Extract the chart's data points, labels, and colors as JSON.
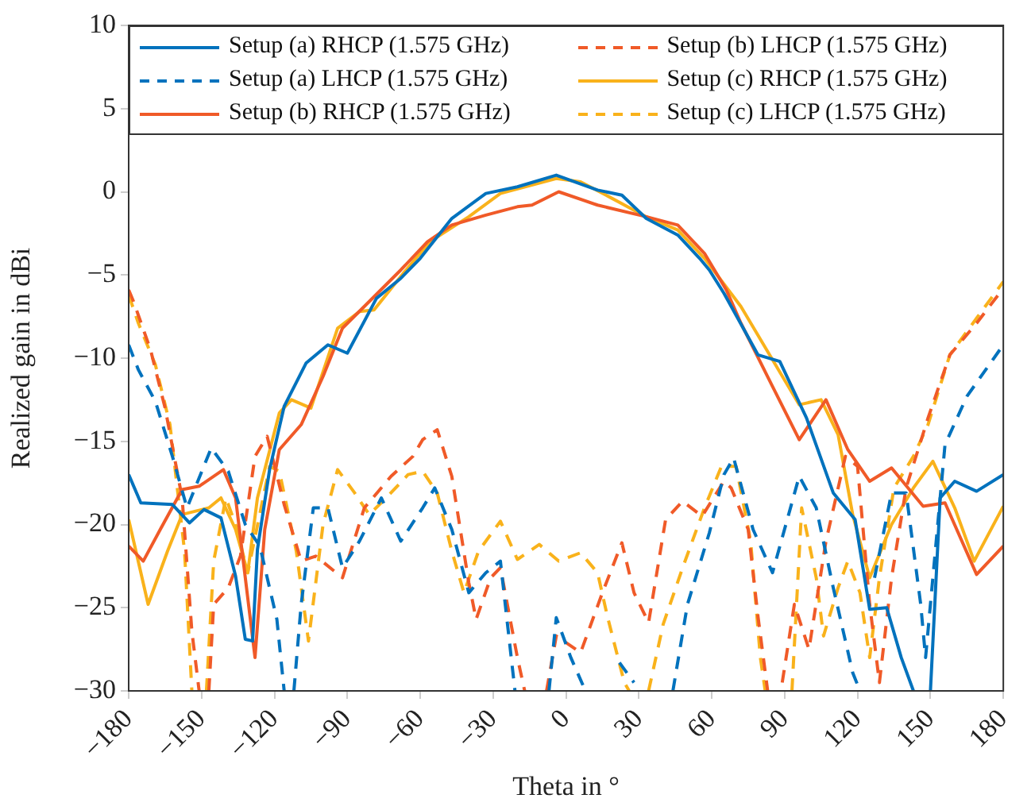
{
  "chart_data": {
    "type": "line",
    "xlabel": "Theta in °",
    "ylabel": "Realized gain in dBi",
    "xlim": [
      -180,
      180
    ],
    "ylim": [
      -30,
      10
    ],
    "xticks": [
      {
        "value": -180,
        "label": "−180"
      },
      {
        "value": -150,
        "label": "−150"
      },
      {
        "value": -120,
        "label": "−120"
      },
      {
        "value": -90,
        "label": "−90"
      },
      {
        "value": -60,
        "label": "−60"
      },
      {
        "value": -30,
        "label": "−30"
      },
      0,
      30,
      60,
      90,
      120,
      150,
      180
    ],
    "yticks": [
      {
        "value": -30,
        "label": "−30"
      },
      {
        "value": -25,
        "label": "−25"
      },
      {
        "value": -20,
        "label": "−20"
      },
      {
        "value": -15,
        "label": "−15"
      },
      {
        "value": -10,
        "label": "−10"
      },
      {
        "value": -5,
        "label": "−5"
      },
      0,
      5,
      10
    ],
    "grid": false,
    "legend": "top",
    "marker": "none",
    "series": [
      {
        "name": "Setup (a) RHCP (1.575 GHz)",
        "color": "#0072bd",
        "line_style": "solid",
        "x": [
          -180,
          -175,
          -162,
          -155,
          -149,
          -142,
          -136,
          -132,
          -129,
          -127,
          -122,
          -116,
          -107,
          -98,
          -90,
          -78,
          -68,
          -60,
          -47,
          -33,
          -20,
          -4,
          13,
          23,
          33,
          46,
          55,
          59,
          65,
          79,
          88,
          99,
          110,
          119,
          125,
          132,
          138,
          143,
          146,
          150,
          154,
          160,
          169,
          180
        ],
        "values": [
          -17,
          -18.7,
          -18.8,
          -19.9,
          -19.1,
          -19.6,
          -23.1,
          -26.9,
          -27,
          -21.5,
          -16.7,
          -12.9,
          -10.3,
          -9.2,
          -9.7,
          -6.4,
          -5.2,
          -4,
          -1.6,
          -0.1,
          0.3,
          1,
          0.1,
          -0.2,
          -1.6,
          -2.6,
          -4,
          -4.7,
          -6.1,
          -9.8,
          -10.2,
          -13.6,
          -18.1,
          -19.7,
          -25.1,
          -25,
          -28,
          -30,
          null,
          -30,
          -18.4,
          -17.4,
          -18,
          -17
        ]
      },
      {
        "name": "Setup (a) LHCP (1.575 GHz)",
        "color": "#0072bd",
        "line_style": "dashed",
        "x": [
          -180,
          -176,
          -169,
          -162,
          -156,
          -146,
          -139,
          -132,
          -126,
          -119,
          -116,
          -114,
          -112,
          -109,
          -104,
          -98,
          -92,
          -85,
          -76,
          -68,
          -59,
          -54,
          -47,
          -40,
          -33,
          -27,
          -21,
          -14,
          -7,
          -4,
          2,
          8,
          15,
          22,
          28,
          36,
          44,
          50,
          59,
          65,
          69,
          77,
          85,
          96,
          103,
          110,
          118,
          121,
          124,
          127,
          134,
          140,
          146,
          148,
          156,
          165,
          180
        ],
        "values": [
          -9.2,
          -10.7,
          -12.6,
          -15.9,
          -19,
          -15.4,
          -16.8,
          -20,
          -21.3,
          -25.7,
          -30,
          null,
          -30,
          -24.8,
          -19,
          -19,
          -22.6,
          -21,
          -18.4,
          -21,
          -19,
          -17.8,
          -20.3,
          -24.1,
          -22.9,
          -22.2,
          -30,
          null,
          -30,
          -25.6,
          -28,
          -30,
          null,
          -28.3,
          -29.5,
          null,
          -30,
          -24.8,
          -20.5,
          -17,
          -16,
          -20.3,
          -22.9,
          -17.1,
          -19,
          -23.8,
          -28.9,
          -30,
          null,
          -23.2,
          -18.1,
          -18.1,
          -24.8,
          -28,
          -15.2,
          -12.3,
          -9.2
        ]
      },
      {
        "name": "Setup (b) RHCP (1.575 GHz)",
        "color": "#f05a28",
        "line_style": "solid",
        "x": [
          -180,
          -174,
          -167,
          -158,
          -151,
          -141,
          -136,
          -132,
          -128,
          -124,
          -118,
          -109,
          -100,
          -92,
          -81,
          -68,
          -57,
          -47,
          -33,
          -20,
          -14,
          -3,
          13,
          33,
          46,
          57,
          66,
          72,
          85,
          96,
          107,
          116,
          125,
          134,
          147,
          156,
          169,
          180
        ],
        "values": [
          -21.3,
          -22.2,
          -20.3,
          -17.9,
          -17.7,
          -16.7,
          -18.4,
          -23.2,
          -28,
          -20.3,
          -15.5,
          -14,
          -11.1,
          -8.2,
          -6.6,
          -4.7,
          -3,
          -2,
          -1.4,
          -0.9,
          -0.8,
          0,
          -0.8,
          -1.5,
          -2,
          -3.7,
          -5.9,
          -7.9,
          -11.7,
          -14.9,
          -12.5,
          -15.5,
          -17.4,
          -16.6,
          -18.9,
          -18.7,
          -23,
          -21.3
        ]
      },
      {
        "name": "Setup (b) LHCP (1.575 GHz)",
        "color": "#f05a28",
        "line_style": "dashed",
        "x": [
          -180,
          -178,
          -171,
          -165,
          -158,
          -154,
          -151,
          -149,
          -147,
          -145,
          -139,
          -134,
          -128,
          -123,
          -116,
          -109,
          -103,
          -92,
          -83,
          -72,
          -63,
          -59,
          -53,
          -47,
          -40,
          -37,
          -31,
          -27,
          -20,
          -17,
          -12,
          -8,
          -4,
          6,
          15,
          23,
          28,
          34,
          41,
          48,
          56,
          65,
          68,
          75,
          79,
          83,
          86,
          89,
          94,
          100,
          107,
          115,
          120,
          125,
          129,
          134,
          140,
          149,
          158,
          169,
          180
        ],
        "values": [
          -5.9,
          -6.6,
          -9.5,
          -13,
          -18.4,
          -26.4,
          -30,
          null,
          -30,
          -24.8,
          -23.8,
          -21.9,
          -15.9,
          -14.7,
          -18.8,
          -22.2,
          -21.9,
          -23.2,
          -19,
          -17.1,
          -15.9,
          -14.9,
          -14.3,
          -17.1,
          -23.5,
          -25.7,
          -23.2,
          -22.6,
          -28,
          -30,
          null,
          -30,
          -26.7,
          -27.7,
          -24.1,
          -21.1,
          -24.1,
          -25.9,
          -19.7,
          -18.6,
          -19.5,
          -17.4,
          -17.8,
          -20.3,
          -25.5,
          -30,
          null,
          -29.5,
          -24.8,
          -27.5,
          -21,
          -15.9,
          -16.5,
          -24.8,
          -29.5,
          -23.2,
          -17.8,
          -13.6,
          -9.8,
          -7.9,
          -5.8
        ]
      },
      {
        "name": "Setup (c) RHCP (1.575 GHz)",
        "color": "#f9b21b",
        "line_style": "solid",
        "x": [
          -180,
          -172,
          -164,
          -158,
          -147,
          -142,
          -136,
          -131,
          -127,
          -118,
          -113,
          -105,
          -94,
          -85,
          -79,
          -67,
          -56,
          -40,
          -27,
          -4,
          6,
          19,
          33,
          46,
          57,
          72,
          85,
          96,
          105,
          112,
          118,
          125,
          134,
          143,
          151,
          160,
          168,
          180
        ],
        "values": [
          -19.7,
          -24.8,
          -21.6,
          -19.4,
          -19,
          -18.4,
          -20.3,
          -22.9,
          -18.4,
          -13.3,
          -12.5,
          -13,
          -8.2,
          -7.2,
          -7.1,
          -4.9,
          -3,
          -1.5,
          -0.1,
          0.8,
          0.6,
          -0.4,
          -1.5,
          -2.3,
          -4,
          -6.9,
          -10.1,
          -12.8,
          -12.5,
          -14.6,
          -19.4,
          -23.2,
          -20,
          -17.8,
          -16.2,
          -19,
          -22.2,
          -18.9
        ]
      },
      {
        "name": "Setup (c) LHCP (1.575 GHz)",
        "color": "#f9b21b",
        "line_style": "dashed",
        "x": [
          -180,
          -176,
          -169,
          -163,
          -157,
          -154,
          -151,
          -148,
          -145,
          -140,
          -136,
          -131,
          -122,
          -118,
          -111,
          -106,
          -100,
          -94,
          -87,
          -81,
          -74,
          -65,
          -59,
          -53,
          -47,
          -42,
          -36,
          -27,
          -20,
          -11,
          -3,
          6,
          13,
          17,
          24,
          26,
          30,
          34,
          40,
          48,
          57,
          64,
          70,
          76,
          80,
          82,
          88,
          93,
          97,
          103,
          106,
          112,
          116,
          121,
          125,
          129,
          135,
          143,
          149,
          158,
          169,
          180
        ],
        "values": [
          -6.2,
          -7.9,
          -10.4,
          -14,
          -21.6,
          -30,
          null,
          -30,
          -22.2,
          -18.4,
          -20,
          -22.9,
          -16.5,
          -16.8,
          -21.6,
          -27,
          -20,
          -16.7,
          -18.1,
          -19.4,
          -18.4,
          -17,
          -16.8,
          -18.1,
          -21.6,
          -24.1,
          -21.6,
          -19.8,
          -22.1,
          -21.2,
          -22.2,
          -21.7,
          -22.9,
          -25.5,
          -29.5,
          -30,
          null,
          -30,
          -26,
          -22.6,
          -19,
          -16.5,
          -16.5,
          -21,
          -28,
          -30,
          null,
          -30,
          -19,
          -23.2,
          -26.7,
          -23.8,
          -22.2,
          -24.1,
          -28,
          -23.2,
          -17.8,
          -15.9,
          -14,
          -9.8,
          -7.6,
          -5.4
        ]
      }
    ]
  }
}
